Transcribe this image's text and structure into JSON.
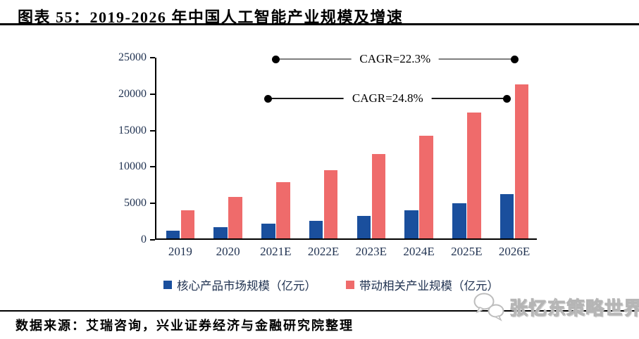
{
  "header": {
    "title": "图表 55：2019-2026 年中国人工智能产业规模及增速"
  },
  "chart_data": {
    "type": "bar",
    "title": "2019-2026 年中国人工智能产业规模及增速",
    "categories": [
      "2019",
      "2020",
      "2021E",
      "2022E",
      "2023E",
      "2024E",
      "2025E",
      "2026E"
    ],
    "series": [
      {
        "key": "core",
        "name": "核心产品市场规模（亿元）",
        "color": "#1A4F9D",
        "values": [
          1100,
          1500,
          2000,
          2400,
          3100,
          3850,
          4850,
          6050
        ]
      },
      {
        "key": "related",
        "name": "带动相关产业规模（亿元）",
        "color": "#EF6B6B",
        "values": [
          3850,
          5700,
          7700,
          9400,
          11600,
          14100,
          17300,
          21100
        ]
      }
    ],
    "xlabel": "",
    "ylabel": "",
    "ylim": [
      0,
      25000
    ],
    "ytick_step": 5000,
    "yticks": [
      "0",
      "5000",
      "10000",
      "15000",
      "20000",
      "25000"
    ],
    "grid": false,
    "legend_position": "bottom",
    "annotations": [
      {
        "label": "CAGR=22.3%",
        "series_key": "related",
        "from": "2021E",
        "to": "2026E",
        "y_value": 24800,
        "line_color": "#7F7F7F",
        "dot_color": "#000000"
      },
      {
        "label": "CAGR=24.8%",
        "series_key": "core",
        "from": "2021E",
        "to": "2026E",
        "y_value": 19400,
        "line_color": "#1A1A1A",
        "dot_color": "#000000"
      }
    ]
  },
  "footer": {
    "source": "数据来源：艾瑞咨询，兴业证券经济与金融研究院整理"
  },
  "watermark": {
    "text": "张忆东策略世界",
    "icon": "wechat-chat-bubbles-icon"
  }
}
